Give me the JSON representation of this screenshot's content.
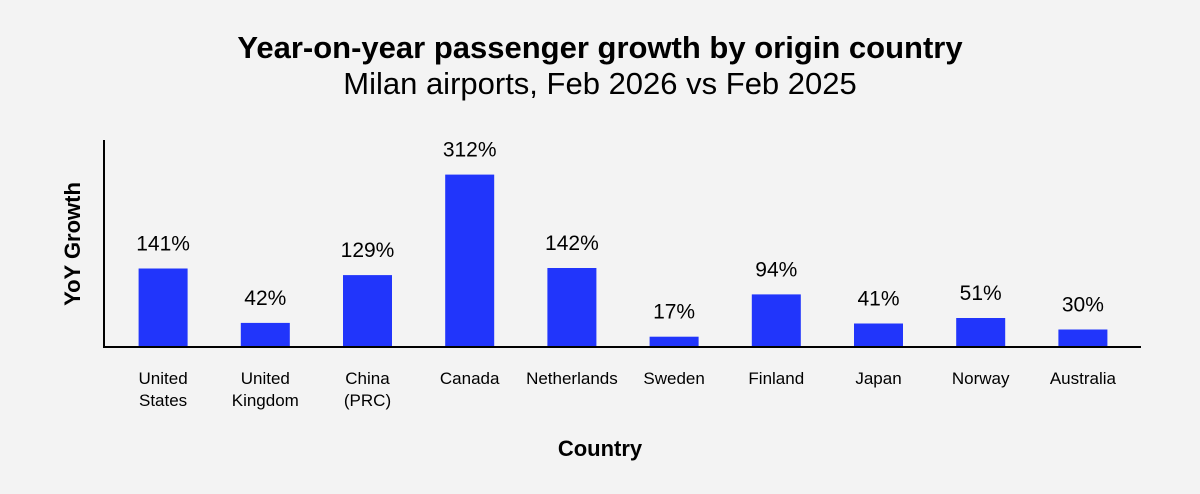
{
  "chart_data": {
    "type": "bar",
    "title": "Year-on-year passenger growth by origin country",
    "subtitle": "Milan airports, Feb 2026 vs Feb 2025",
    "xlabel": "Country",
    "ylabel": "YoY Growth",
    "categories": [
      [
        "United",
        "States"
      ],
      [
        "United",
        "Kingdom"
      ],
      [
        "China",
        "(PRC)"
      ],
      [
        "Canada"
      ],
      [
        "Netherlands"
      ],
      [
        "Sweden"
      ],
      [
        "Finland"
      ],
      [
        "Japan"
      ],
      [
        "Norway"
      ],
      [
        "Australia"
      ]
    ],
    "values": [
      141,
      42,
      129,
      312,
      142,
      17,
      94,
      41,
      51,
      30
    ],
    "value_labels": [
      "141%",
      "42%",
      "129%",
      "312%",
      "142%",
      "17%",
      "94%",
      "41%",
      "51%",
      "30%"
    ],
    "ylim": [
      0,
      375
    ],
    "bar_color": "#2135fb",
    "grid": false,
    "legend": "none"
  }
}
